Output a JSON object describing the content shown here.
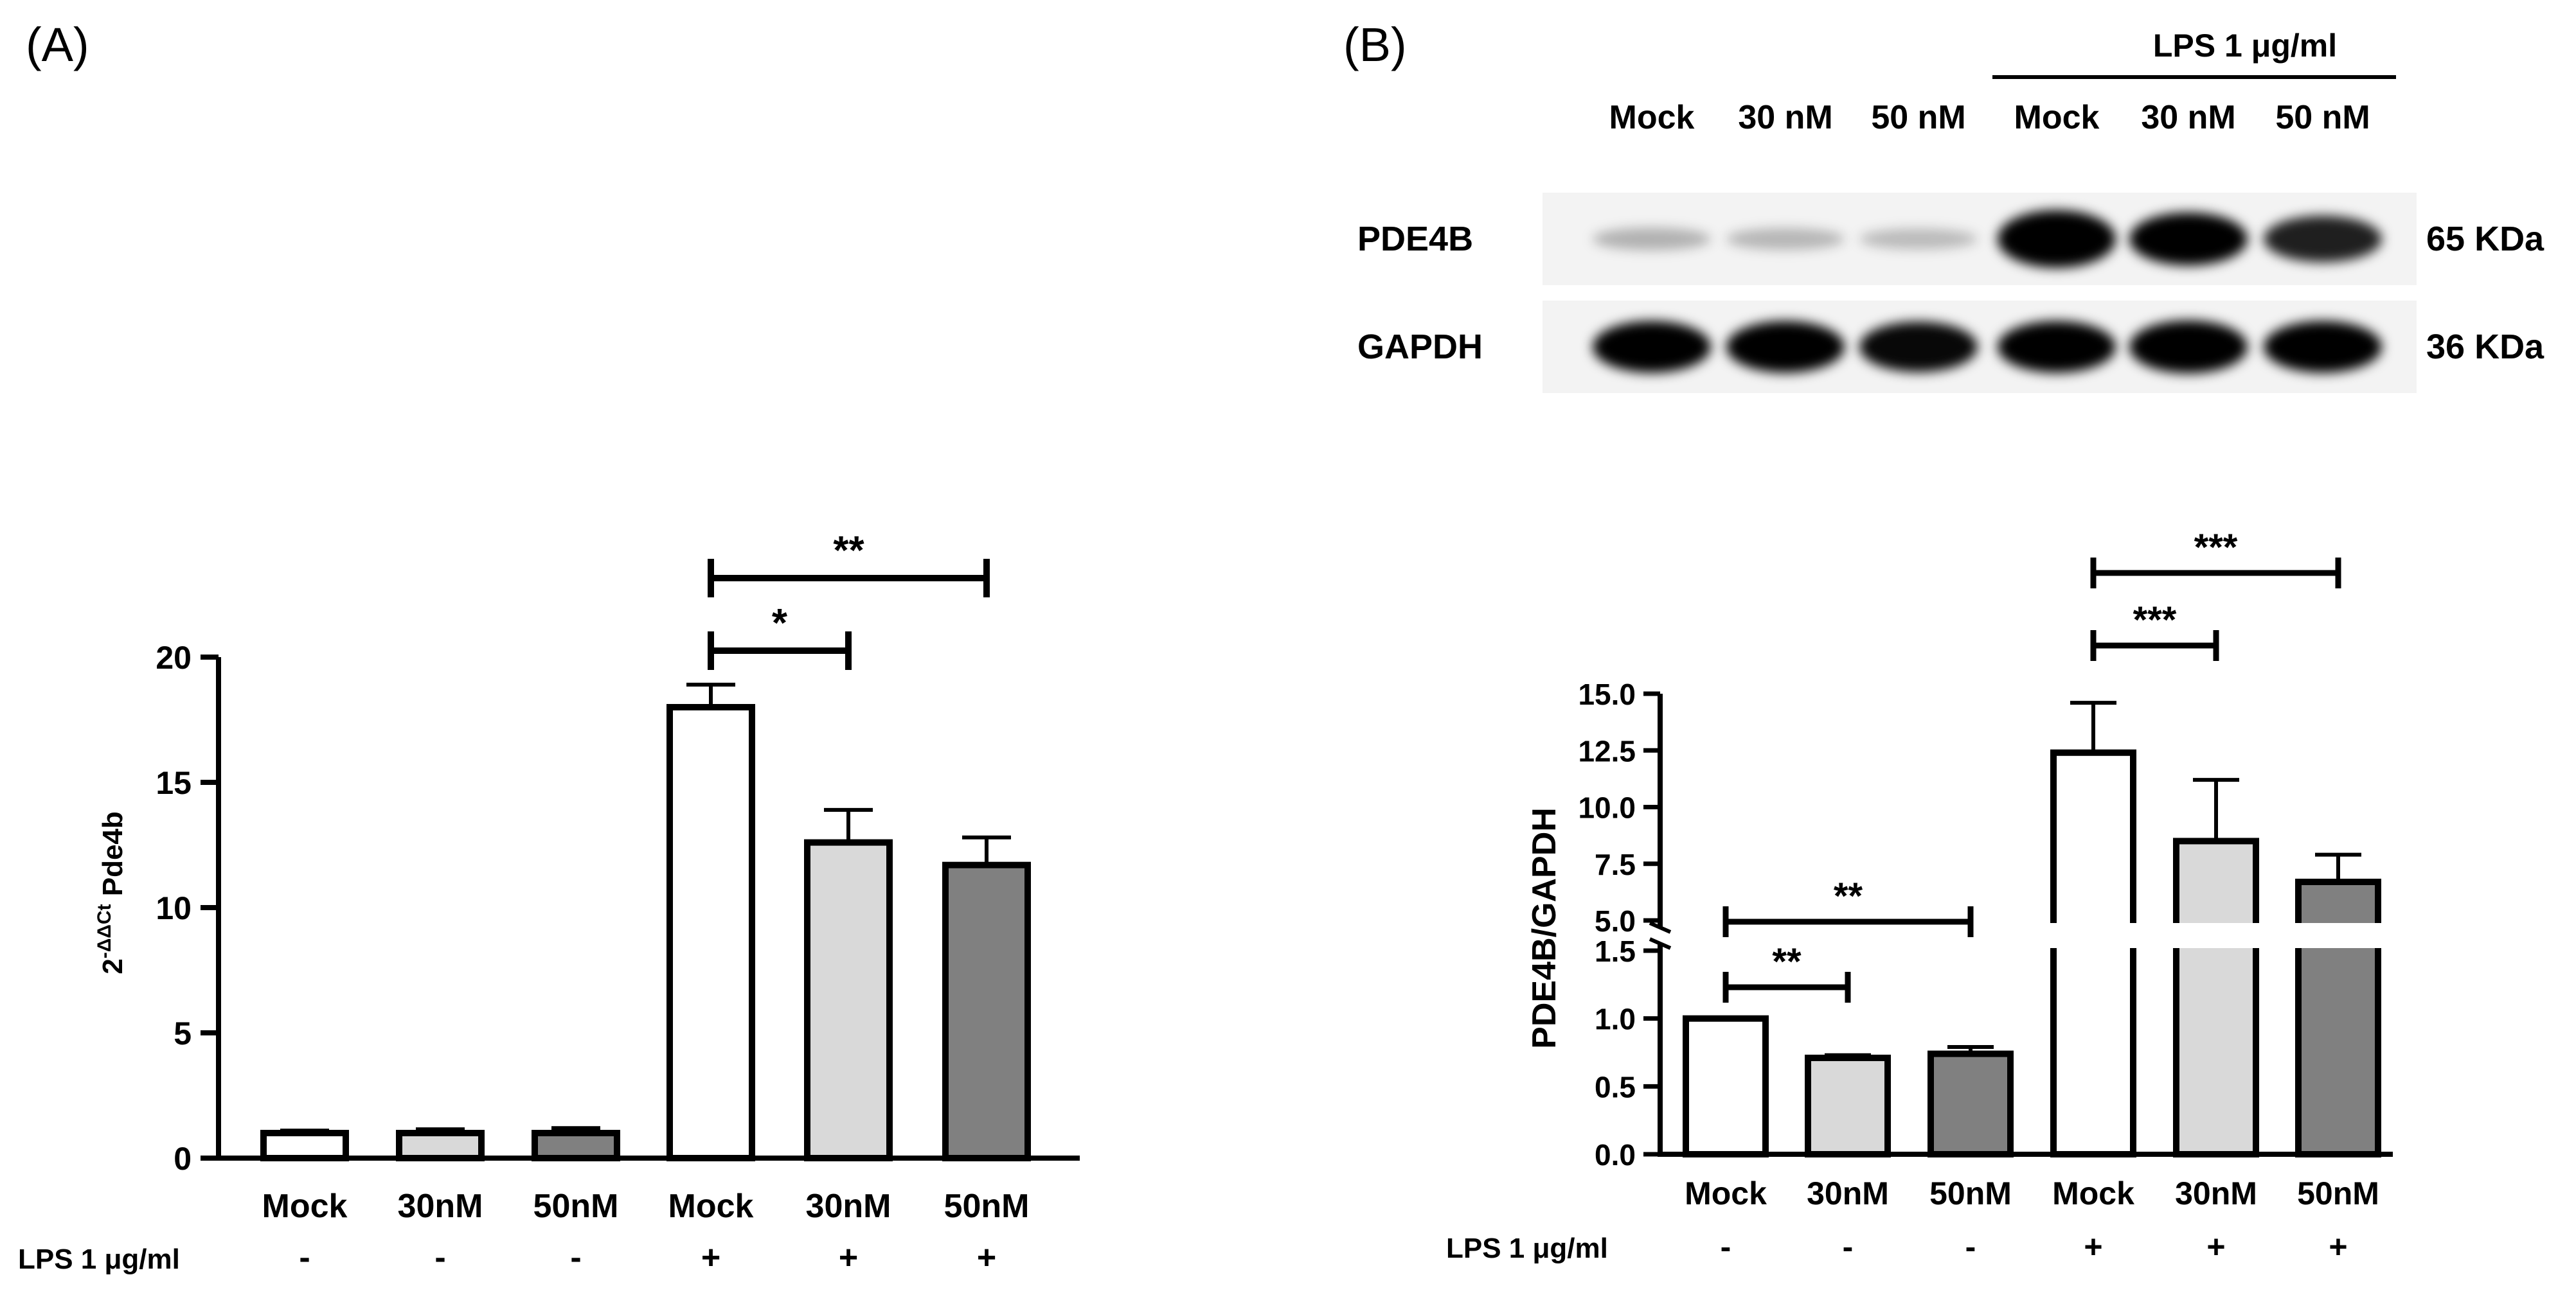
{
  "panel_a": {
    "label": "(A)",
    "chart_data": {
      "type": "bar",
      "categories": [
        "Mock",
        "30nM",
        "50nM",
        "Mock",
        "30nM",
        "50nM"
      ],
      "values": [
        1.0,
        1.0,
        1.0,
        18.0,
        12.6,
        11.7
      ],
      "errors": [
        0.1,
        0.15,
        0.2,
        0.9,
        1.3,
        1.1
      ],
      "colors": [
        "#ffffff",
        "#d9d9d9",
        "#808080",
        "#ffffff",
        "#d9d9d9",
        "#808080"
      ],
      "ylabel_main": "2",
      "ylabel_sup": "-ΔΔCt",
      "ylabel_rest": " Pde4b",
      "ylim": [
        0,
        20
      ],
      "yticks": [
        "0",
        "5",
        "10",
        "15",
        "20"
      ],
      "treatment_label": "LPS 1 μg/ml",
      "treatment_signs": [
        "-",
        "-",
        "-",
        "+",
        "+",
        "+"
      ],
      "significance": [
        {
          "from": 3,
          "to": 4,
          "label": "*"
        },
        {
          "from": 3,
          "to": 5,
          "label": "**"
        }
      ]
    }
  },
  "panel_b": {
    "label": "(B)",
    "blot": {
      "group_label": "LPS 1 μg/ml",
      "lane_labels": [
        "Mock",
        "30 nM",
        "50 nM",
        "Mock",
        "30 nM",
        "50 nM"
      ],
      "rows": [
        {
          "name": "PDE4B",
          "size": "65 KDa",
          "intensities": [
            0.12,
            0.1,
            0.08,
            1.0,
            0.88,
            0.72
          ]
        },
        {
          "name": "GAPDH",
          "size": "36 KDa",
          "intensities": [
            0.85,
            0.85,
            0.82,
            0.85,
            0.88,
            0.85
          ]
        }
      ]
    },
    "chart_data": {
      "type": "bar",
      "axis_break": true,
      "categories": [
        "Mock",
        "30nM",
        "50nM",
        "Mock",
        "30nM",
        "50nM"
      ],
      "values": [
        1.0,
        0.71,
        0.74,
        12.4,
        8.5,
        6.7
      ],
      "errors": [
        0.0,
        0.02,
        0.05,
        2.2,
        2.7,
        1.2
      ],
      "colors": [
        "#ffffff",
        "#d9d9d9",
        "#808080",
        "#ffffff",
        "#d9d9d9",
        "#808080"
      ],
      "ylabel": "PDE4B/GAPDH",
      "lower_ylim": [
        0,
        1.5
      ],
      "lower_yticks": [
        "0.0",
        "0.5",
        "1.0",
        "1.5"
      ],
      "upper_ylim": [
        5.0,
        15.0
      ],
      "upper_yticks": [
        "5.0",
        "7.5",
        "10.0",
        "12.5",
        "15.0"
      ],
      "treatment_label": "LPS 1 μg/ml",
      "treatment_signs": [
        "-",
        "-",
        "-",
        "+",
        "+",
        "+"
      ],
      "significance": [
        {
          "from": 0,
          "to": 1,
          "label": "**"
        },
        {
          "from": 0,
          "to": 2,
          "label": "**"
        },
        {
          "from": 3,
          "to": 4,
          "label": "***"
        },
        {
          "from": 3,
          "to": 5,
          "label": "***"
        }
      ]
    }
  }
}
